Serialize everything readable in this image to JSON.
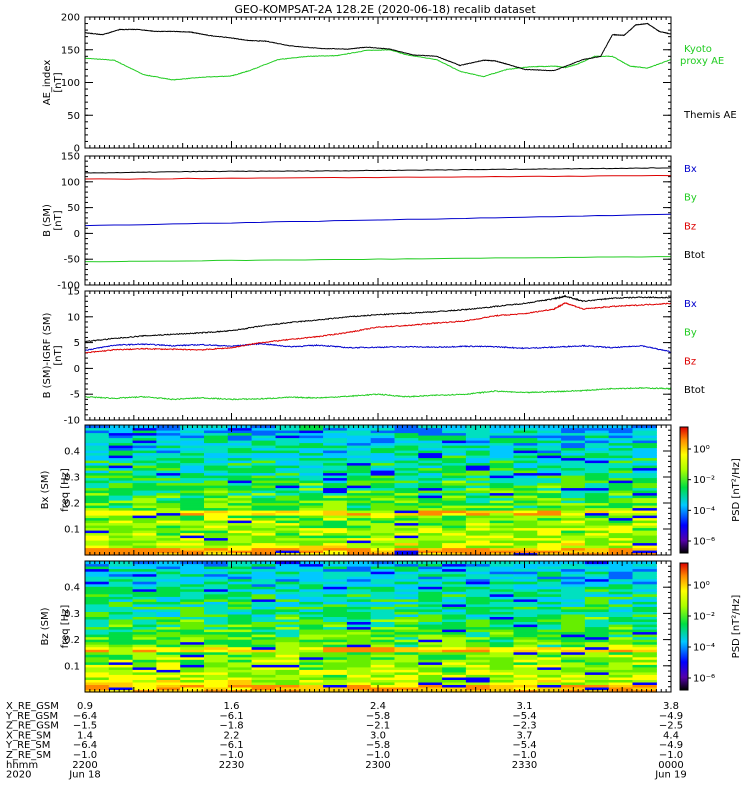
{
  "title": "GEO-KOMPSAT-2A 128.2E (2020-06-18) recalib dataset",
  "colors": {
    "black": "#000000",
    "blue": "#0000cc",
    "green": "#22cc22",
    "red": "#dd0000"
  },
  "chart_data": [
    {
      "type": "line",
      "ylabel": [
        "AE_index",
        "[nT]"
      ],
      "ylim": [
        0,
        200
      ],
      "yticks": [
        0,
        50,
        100,
        150,
        200
      ],
      "legend_placement": "right",
      "series": [
        {
          "name": "Kyoto proxy AE",
          "legend": [
            "Kyoto",
            "proxy AE"
          ],
          "color": "#22cc22",
          "x": [
            0,
            5,
            10,
            15,
            20,
            25,
            28,
            33,
            38,
            43,
            48,
            52,
            55,
            60,
            64,
            68,
            72,
            76,
            80,
            82,
            84,
            87,
            90,
            93,
            96,
            100
          ],
          "y": [
            137,
            134,
            112,
            104,
            108,
            110,
            118,
            135,
            140,
            141,
            149,
            150,
            142,
            135,
            117,
            109,
            120,
            124,
            125,
            123,
            128,
            140,
            140,
            125,
            122,
            135
          ]
        },
        {
          "name": "Themis AE",
          "legend": [
            "Themis AE"
          ],
          "color": "#000000",
          "x": [
            0,
            3,
            6,
            9,
            12,
            15,
            18,
            21,
            25,
            28,
            31,
            35,
            40,
            45,
            48,
            52,
            56,
            60,
            64,
            68,
            70,
            72,
            75,
            80,
            85,
            88,
            90,
            92,
            94,
            96,
            98,
            100
          ],
          "y": [
            176,
            173,
            181,
            181,
            178,
            178,
            177,
            172,
            168,
            164,
            163,
            156,
            152,
            151,
            154,
            151,
            142,
            140,
            126,
            134,
            133,
            128,
            120,
            118,
            135,
            140,
            173,
            172,
            188,
            190,
            178,
            174
          ]
        }
      ]
    },
    {
      "type": "line",
      "ylabel": [
        "B (SM)",
        "[nT]"
      ],
      "ylim": [
        -100,
        150
      ],
      "yticks": [
        -100,
        -50,
        0,
        50,
        100,
        150
      ],
      "legend_placement": "right",
      "series": [
        {
          "name": "Bx",
          "color": "#0000cc",
          "x": [
            0,
            100
          ],
          "y": [
            15,
            37
          ]
        },
        {
          "name": "By",
          "color": "#22cc22",
          "x": [
            0,
            100
          ],
          "y": [
            -55,
            -45
          ]
        },
        {
          "name": "Bz",
          "color": "#dd0000",
          "x": [
            0,
            100
          ],
          "y": [
            105,
            112
          ]
        },
        {
          "name": "Btot",
          "color": "#000000",
          "x": [
            0,
            20,
            40,
            60,
            80,
            100
          ],
          "y": [
            117,
            120,
            121,
            123,
            125,
            127
          ]
        }
      ]
    },
    {
      "type": "line",
      "ylabel": [
        "B (SM)-IGRF (SM)",
        "[nT]"
      ],
      "ylim": [
        -10,
        15
      ],
      "yticks": [
        -10,
        -5,
        0,
        5,
        10,
        15
      ],
      "legend_placement": "right",
      "series": [
        {
          "name": "Bx",
          "color": "#0000cc",
          "x": [
            0,
            5,
            10,
            15,
            20,
            25,
            30,
            35,
            40,
            45,
            50,
            55,
            60,
            65,
            70,
            75,
            80,
            85,
            90,
            95,
            100
          ],
          "y": [
            3.5,
            4.5,
            4.7,
            4.4,
            4.6,
            4.3,
            4.8,
            4.2,
            4.5,
            4.0,
            4.1,
            4.2,
            4.1,
            4.3,
            4.2,
            3.9,
            4.1,
            4.4,
            4.0,
            4.4,
            3.2
          ]
        },
        {
          "name": "By",
          "color": "#22cc22",
          "x": [
            0,
            5,
            10,
            15,
            20,
            25,
            30,
            35,
            40,
            45,
            50,
            55,
            60,
            65,
            70,
            75,
            80,
            85,
            90,
            95,
            100
          ],
          "y": [
            -5.5,
            -5.8,
            -5.5,
            -6.0,
            -5.7,
            -6.0,
            -5.9,
            -5.6,
            -5.7,
            -5.4,
            -5.0,
            -5.5,
            -5.2,
            -5.0,
            -4.4,
            -4.7,
            -4.5,
            -4.3,
            -3.9,
            -3.8,
            -3.9
          ]
        },
        {
          "name": "Bz",
          "color": "#dd0000",
          "x": [
            0,
            5,
            10,
            15,
            20,
            25,
            30,
            35,
            40,
            45,
            50,
            55,
            60,
            65,
            70,
            75,
            80,
            82,
            85,
            90,
            95,
            100
          ],
          "y": [
            3.0,
            3.6,
            3.8,
            3.7,
            3.6,
            4.0,
            5.0,
            5.6,
            6.2,
            7.0,
            8.0,
            8.3,
            8.8,
            9.2,
            10.2,
            10.6,
            11.5,
            12.7,
            11.5,
            12.0,
            12.3,
            12.6
          ]
        },
        {
          "name": "Btot",
          "color": "#000000",
          "x": [
            0,
            5,
            10,
            15,
            20,
            25,
            30,
            35,
            40,
            45,
            50,
            55,
            60,
            65,
            70,
            75,
            80,
            82,
            85,
            90,
            95,
            100
          ],
          "y": [
            5.2,
            5.8,
            6.3,
            6.6,
            6.9,
            7.3,
            8.2,
            8.9,
            9.4,
            10.0,
            10.4,
            10.7,
            11.0,
            11.4,
            12.0,
            12.6,
            13.5,
            14.0,
            13.0,
            13.6,
            13.8,
            13.7
          ]
        }
      ]
    },
    {
      "type": "heatmap",
      "ylabel": [
        "Bx (SM)",
        "freq [Hz]"
      ],
      "ylim": [
        0,
        0.5
      ],
      "yticks": [
        0.1,
        0.2,
        0.3,
        0.4
      ],
      "colorbar": {
        "label": "PSD [nT²/Hz]",
        "ticks": [
          "10⁰",
          "10⁻²",
          "10⁻⁴",
          "10⁻⁶"
        ],
        "scale": "log"
      }
    },
    {
      "type": "heatmap",
      "ylabel": [
        "Bz (SM)",
        "freq [Hz]"
      ],
      "ylim": [
        0,
        0.5
      ],
      "yticks": [
        0.1,
        0.2,
        0.3,
        0.4
      ],
      "colorbar": {
        "label": "PSD [nT²/Hz]",
        "ticks": [
          "10⁰",
          "10⁻²",
          "10⁻⁴",
          "10⁻⁶"
        ],
        "scale": "log"
      }
    }
  ],
  "ephemeris": {
    "rows": [
      {
        "label": "X_RE_GSM",
        "values": [
          "0.9",
          "1.6",
          "2.4",
          "3.1",
          "3.8"
        ]
      },
      {
        "label": "Y_RE_GSM",
        "values": [
          "−6.4",
          "−6.1",
          "−5.8",
          "−5.4",
          "−4.9"
        ]
      },
      {
        "label": "Z_RE_GSM",
        "values": [
          "−1.5",
          "−1.8",
          "−2.1",
          "−2.3",
          "−2.5"
        ]
      },
      {
        "label": "X_RE_SM",
        "values": [
          "1.4",
          "2.2",
          "3.0",
          "3.7",
          "4.4"
        ]
      },
      {
        "label": "Y_RE_SM",
        "values": [
          "−6.4",
          "−6.1",
          "−5.8",
          "−5.4",
          "−4.9"
        ]
      },
      {
        "label": "Z_RE_SM",
        "values": [
          "−1.0",
          "−1.0",
          "−1.0",
          "−1.0",
          "−1.0"
        ]
      },
      {
        "label": "hhmm",
        "values": [
          "2200",
          "2230",
          "2300",
          "2330",
          "0000"
        ]
      },
      {
        "label": "2020",
        "values": [
          "Jun 18",
          "",
          "",
          "",
          "Jun 19"
        ]
      }
    ]
  }
}
